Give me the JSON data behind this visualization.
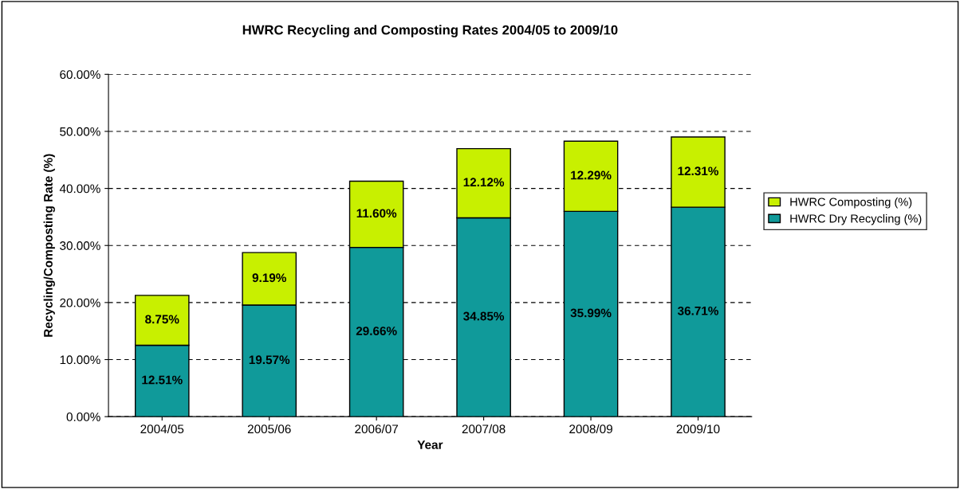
{
  "chart_data": {
    "type": "bar",
    "stacked": true,
    "title": "HWRC Recycling and Composting Rates 2004/05 to 2009/10",
    "xlabel": "Year",
    "ylabel": "Recycling/Composting Rate (%)",
    "categories": [
      "2004/05",
      "2005/06",
      "2006/07",
      "2007/08",
      "2008/09",
      "2009/10"
    ],
    "series": [
      {
        "name": "HWRC Dry Recycling (%)",
        "color": "#109a9a",
        "values": [
          12.51,
          19.57,
          29.66,
          34.85,
          35.99,
          36.71
        ],
        "value_labels": [
          "12.51%",
          "19.57%",
          "29.66%",
          "34.85%",
          "35.99%",
          "36.71%"
        ]
      },
      {
        "name": "HWRC Composting (%)",
        "color": "#c8f000",
        "values": [
          8.75,
          9.19,
          11.6,
          12.12,
          12.29,
          12.31
        ],
        "value_labels": [
          "8.75%",
          "9.19%",
          "11.60%",
          "12.12%",
          "12.29%",
          "12.31%"
        ]
      }
    ],
    "ylim": [
      0,
      60
    ],
    "yticks": [
      {
        "value": 0,
        "label": "0.00%"
      },
      {
        "value": 10,
        "label": "10.00%"
      },
      {
        "value": 20,
        "label": "20.00%"
      },
      {
        "value": 30,
        "label": "30.00%"
      },
      {
        "value": 40,
        "label": "40.00%"
      },
      {
        "value": 50,
        "label": "50.00%"
      },
      {
        "value": 60,
        "label": "60.00%"
      }
    ],
    "grid": "y",
    "legend": "right"
  }
}
